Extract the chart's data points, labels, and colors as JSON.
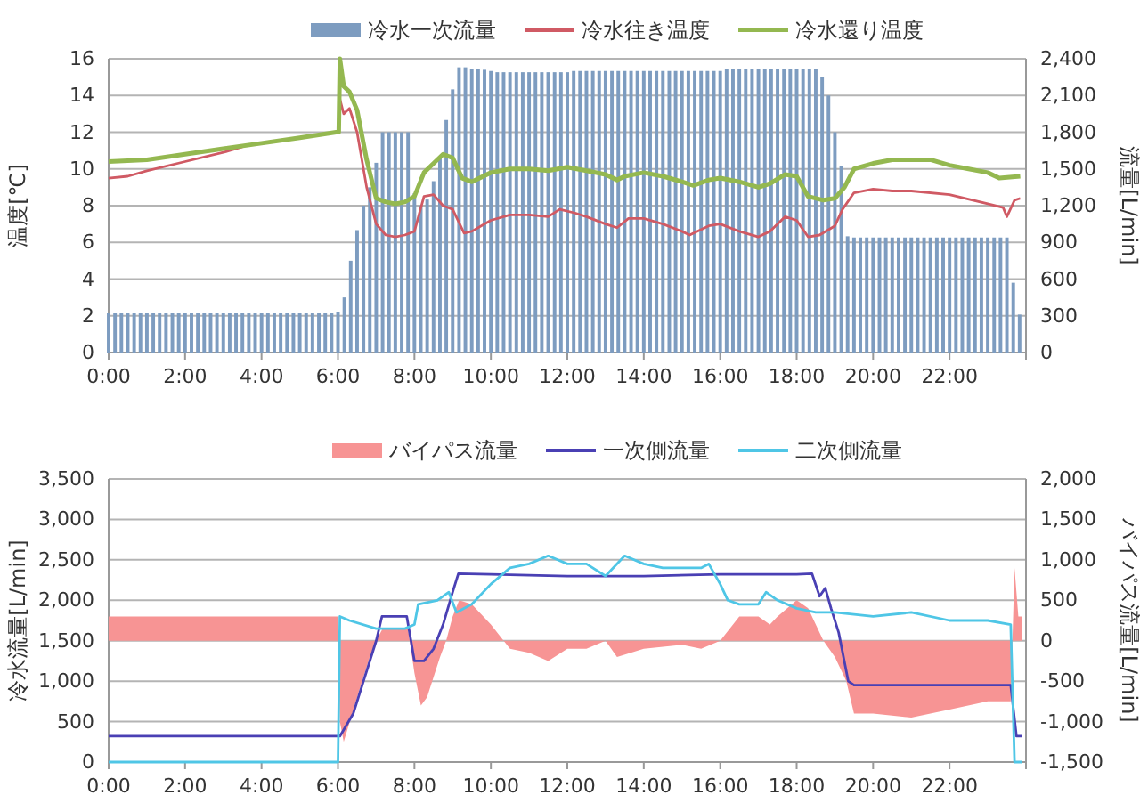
{
  "chart_data": [
    {
      "type": "line",
      "ylabel": "温度[℃]",
      "y2label": "流量[L/min]",
      "legend": "top",
      "grid": "y",
      "xlim": [
        0,
        24
      ],
      "xticks": [
        {
          "value": 0,
          "label": "0:00"
        },
        {
          "value": 2,
          "label": "2:00"
        },
        {
          "value": 4,
          "label": "4:00"
        },
        {
          "value": 6,
          "label": "6:00"
        },
        {
          "value": 8,
          "label": "8:00"
        },
        {
          "value": 10,
          "label": "10:00"
        },
        {
          "value": 12,
          "label": "12:00"
        },
        {
          "value": 14,
          "label": "14:00"
        },
        {
          "value": 16,
          "label": "16:00"
        },
        {
          "value": 18,
          "label": "18:00"
        },
        {
          "value": 20,
          "label": "20:00"
        },
        {
          "value": 22,
          "label": "22:00"
        }
      ],
      "ylim": [
        0,
        16
      ],
      "yticks": [
        0,
        2,
        4,
        6,
        8,
        10,
        12,
        14,
        16
      ],
      "y2lim": [
        0,
        2400
      ],
      "y2ticks": [
        0,
        300,
        600,
        900,
        {
          "value": 1200,
          "label": "1,200"
        },
        {
          "value": 1500,
          "label": "1,500"
        },
        {
          "value": 1800,
          "label": "1,800"
        },
        {
          "value": 2100,
          "label": "2,100"
        },
        {
          "value": 2400,
          "label": "2,400"
        }
      ],
      "series": [
        {
          "name": "冷水一次流量",
          "type": "bar",
          "axis": "y2",
          "color": "#7d9cc0",
          "x": [
            0,
            0.167,
            0.333,
            0.5,
            0.667,
            0.833,
            1,
            1.167,
            1.333,
            1.5,
            1.667,
            1.833,
            2,
            2.167,
            2.333,
            2.5,
            2.667,
            2.833,
            3,
            3.167,
            3.333,
            3.5,
            3.667,
            3.833,
            4,
            4.167,
            4.333,
            4.5,
            4.667,
            4.833,
            5,
            5.167,
            5.333,
            5.5,
            5.667,
            5.833,
            6,
            6.167,
            6.333,
            6.5,
            6.667,
            6.833,
            7,
            7.167,
            7.333,
            7.5,
            7.667,
            7.833,
            8,
            8.167,
            8.333,
            8.5,
            8.667,
            8.833,
            9,
            9.167,
            9.333,
            9.5,
            9.667,
            9.833,
            10,
            10.167,
            10.333,
            10.5,
            10.667,
            10.833,
            11,
            11.167,
            11.333,
            11.5,
            11.667,
            11.833,
            12,
            12.167,
            12.333,
            12.5,
            12.667,
            12.833,
            13,
            13.167,
            13.333,
            13.5,
            13.667,
            13.833,
            14,
            14.167,
            14.333,
            14.5,
            14.667,
            14.833,
            15,
            15.167,
            15.333,
            15.5,
            15.667,
            15.833,
            16,
            16.167,
            16.333,
            16.5,
            16.667,
            16.833,
            17,
            17.167,
            17.333,
            17.5,
            17.667,
            17.833,
            18,
            18.167,
            18.333,
            18.5,
            18.667,
            18.833,
            19,
            19.167,
            19.333,
            19.5,
            19.667,
            19.833,
            20,
            20.167,
            20.333,
            20.5,
            20.667,
            20.833,
            21,
            21.167,
            21.333,
            21.5,
            21.667,
            21.833,
            22,
            22.167,
            22.333,
            22.5,
            22.667,
            22.833,
            23,
            23.167,
            23.333,
            23.5,
            23.667,
            23.833
          ],
          "values": [
            320,
            320,
            320,
            320,
            320,
            320,
            320,
            320,
            320,
            320,
            320,
            320,
            320,
            320,
            320,
            320,
            320,
            320,
            320,
            320,
            320,
            320,
            320,
            320,
            320,
            320,
            320,
            320,
            320,
            320,
            320,
            320,
            320,
            320,
            320,
            320,
            330,
            450,
            750,
            1000,
            1200,
            1350,
            1550,
            1800,
            1800,
            1800,
            1800,
            1800,
            1300,
            1200,
            1250,
            1400,
            1600,
            1900,
            2150,
            2330,
            2330,
            2320,
            2320,
            2310,
            2300,
            2290,
            2290,
            2290,
            2290,
            2290,
            2290,
            2290,
            2290,
            2290,
            2290,
            2290,
            2290,
            2300,
            2300,
            2300,
            2300,
            2300,
            2300,
            2300,
            2300,
            2300,
            2300,
            2300,
            2300,
            2300,
            2300,
            2300,
            2300,
            2300,
            2300,
            2300,
            2300,
            2300,
            2300,
            2300,
            2300,
            2320,
            2320,
            2320,
            2320,
            2320,
            2320,
            2320,
            2320,
            2320,
            2320,
            2320,
            2320,
            2320,
            2320,
            2320,
            2250,
            2100,
            1800,
            1520,
            950,
            940,
            940,
            940,
            940,
            940,
            940,
            940,
            940,
            940,
            940,
            940,
            940,
            940,
            940,
            940,
            940,
            940,
            940,
            940,
            940,
            940,
            940,
            940,
            940,
            940,
            570,
            310
          ]
        },
        {
          "name": "冷水往き温度",
          "color": "#d05a64",
          "x": [
            0,
            0.5,
            1,
            2,
            3,
            3.5,
            4,
            5,
            6,
            6.05,
            6.15,
            6.3,
            6.5,
            6.75,
            7,
            7.25,
            7.5,
            7.75,
            8,
            8.25,
            8.5,
            8.75,
            9,
            9.3,
            9.5,
            10,
            10.5,
            11,
            11.5,
            11.8,
            12.2,
            12.5,
            13,
            13.3,
            13.6,
            14,
            14.5,
            15,
            15.2,
            15.7,
            16,
            16.5,
            17,
            17.3,
            17.7,
            18,
            18.3,
            18.6,
            19,
            19.2,
            19.5,
            20,
            20.5,
            21,
            22,
            23,
            23.4,
            23.5,
            23.7,
            23.85
          ],
          "values": [
            9.5,
            9.6,
            9.9,
            10.4,
            10.9,
            11.2,
            null,
            null,
            null,
            13.8,
            13,
            13.3,
            12,
            9,
            7,
            6.4,
            6.3,
            6.4,
            6.6,
            8.5,
            8.6,
            8,
            7.8,
            6.5,
            6.6,
            7.2,
            7.5,
            7.5,
            7.4,
            7.8,
            7.6,
            7.4,
            7,
            6.8,
            7.3,
            7.3,
            7,
            6.6,
            6.4,
            6.9,
            7,
            6.6,
            6.3,
            6.6,
            7.4,
            7.2,
            6.3,
            6.4,
            6.9,
            7.8,
            8.7,
            8.9,
            8.8,
            8.8,
            8.6,
            8.1,
            7.9,
            7.4,
            8.3,
            8.4
          ]
        },
        {
          "name": "冷水還り温度",
          "color": "#94b850",
          "x": [
            0,
            1,
            2,
            3,
            4,
            5,
            5.95,
            6.02,
            6.05,
            6.15,
            6.3,
            6.5,
            6.75,
            7,
            7.25,
            7.5,
            7.75,
            8,
            8.25,
            8.5,
            8.75,
            9,
            9.25,
            9.5,
            10,
            10.5,
            11,
            11.5,
            12,
            12.5,
            13,
            13.3,
            13.5,
            14,
            14.5,
            15,
            15.3,
            15.7,
            16,
            16.5,
            17,
            17.3,
            17.7,
            18,
            18.3,
            18.7,
            19,
            19.25,
            19.5,
            20,
            20.5,
            21,
            21.5,
            22,
            22.5,
            23,
            23.3,
            23.85
          ],
          "values": [
            10.4,
            10.5,
            10.8,
            11.1,
            11.4,
            11.7,
            12,
            12,
            16,
            14.5,
            14.2,
            13.2,
            10.5,
            8.4,
            8.2,
            8.1,
            8.2,
            8.5,
            9.8,
            10.3,
            10.8,
            10.6,
            9.5,
            9.3,
            9.8,
            10,
            10,
            9.9,
            10.1,
            9.9,
            9.7,
            9.4,
            9.6,
            9.8,
            9.6,
            9.3,
            9.1,
            9.4,
            9.5,
            9.3,
            9,
            9.2,
            9.7,
            9.6,
            8.5,
            8.3,
            8.4,
            9,
            10,
            10.3,
            10.5,
            10.5,
            10.5,
            10.2,
            10,
            9.8,
            9.5,
            9.6
          ]
        }
      ]
    },
    {
      "type": "line",
      "ylabel": "冷水流量[L/min]",
      "y2label": "バイパス流量[L/min]",
      "legend": "top",
      "grid": "y",
      "xlim": [
        0,
        24
      ],
      "xticks": [
        {
          "value": 0,
          "label": "0:00"
        },
        {
          "value": 2,
          "label": "2:00"
        },
        {
          "value": 4,
          "label": "4:00"
        },
        {
          "value": 6,
          "label": "6:00"
        },
        {
          "value": 8,
          "label": "8:00"
        },
        {
          "value": 10,
          "label": "10:00"
        },
        {
          "value": 12,
          "label": "12:00"
        },
        {
          "value": 14,
          "label": "14:00"
        },
        {
          "value": 16,
          "label": "16:00"
        },
        {
          "value": 18,
          "label": "18:00"
        },
        {
          "value": 20,
          "label": "20:00"
        },
        {
          "value": 22,
          "label": "22:00"
        }
      ],
      "ylim": [
        0,
        3500
      ],
      "yticks": [
        0,
        500,
        {
          "value": 1000,
          "label": "1,000"
        },
        {
          "value": 1500,
          "label": "1,500"
        },
        {
          "value": 2000,
          "label": "2,000"
        },
        {
          "value": 2500,
          "label": "2,500"
        },
        {
          "value": 3000,
          "label": "3,000"
        },
        {
          "value": 3500,
          "label": "3,500"
        }
      ],
      "y2lim": [
        -1500,
        2000
      ],
      "y2ticks": [
        {
          "value": -1500,
          "label": "-1,500"
        },
        {
          "value": -1000,
          "label": "-1,000"
        },
        -500,
        0,
        500,
        {
          "value": 1000,
          "label": "1,000"
        },
        {
          "value": 1500,
          "label": "1,500"
        },
        {
          "value": 2000,
          "label": "2,000"
        }
      ],
      "series": [
        {
          "name": "バイパス流量",
          "type": "area",
          "axis": "y2",
          "color": "#f79494",
          "x": [
            0,
            6,
            6.05,
            6.15,
            6.5,
            6.83,
            7,
            7.17,
            7.83,
            8,
            8.17,
            8.33,
            8.67,
            8.83,
            9,
            9.17,
            9.5,
            10,
            10.5,
            11,
            11.5,
            12,
            12.5,
            13,
            13.3,
            14,
            15,
            15.5,
            16,
            16.5,
            17,
            17.3,
            17.5,
            18,
            18.3,
            18.7,
            19,
            19.3,
            19.5,
            20,
            21,
            22,
            23,
            23.6,
            23.7,
            23.8,
            23.9
          ],
          "values": [
            300,
            300,
            -1000,
            -1250,
            -700,
            -200,
            0,
            150,
            150,
            -400,
            -800,
            -700,
            -200,
            0,
            300,
            500,
            450,
            200,
            -100,
            -150,
            -250,
            -100,
            -100,
            0,
            -200,
            -100,
            -50,
            -100,
            0,
            300,
            300,
            200,
            300,
            500,
            400,
            0,
            -200,
            -500,
            -900,
            -900,
            -950,
            -850,
            -750,
            -750,
            900,
            300,
            300
          ]
        },
        {
          "name": "一次側流量",
          "color": "#4a40b4",
          "x": [
            0,
            6.05,
            6.4,
            6.8,
            7,
            7.15,
            7.8,
            8,
            8.25,
            8.5,
            8.75,
            9,
            9.15,
            10,
            12,
            14,
            16,
            18,
            18.4,
            18.6,
            18.75,
            18.9,
            19.1,
            19.35,
            19.5,
            23.6,
            23.75,
            23.9
          ],
          "values": [
            320,
            320,
            600,
            1200,
            1500,
            1800,
            1800,
            1250,
            1250,
            1400,
            1700,
            2100,
            2330,
            2320,
            2300,
            2300,
            2320,
            2320,
            2330,
            2050,
            2150,
            1900,
            1600,
            1000,
            950,
            950,
            320,
            320
          ]
        },
        {
          "name": "二次側流量",
          "color": "#4fc6e6",
          "x": [
            0,
            6,
            6.05,
            6.3,
            7,
            7.75,
            8,
            8.1,
            8.6,
            8.9,
            9.1,
            9.5,
            10,
            10.5,
            11,
            11.5,
            12,
            12.5,
            13,
            13.5,
            14,
            14.5,
            15,
            15.5,
            15.7,
            16,
            16.2,
            16.5,
            17,
            17.2,
            17.5,
            18,
            18.5,
            19,
            20,
            21,
            22,
            23,
            23.6,
            23.7,
            23.9
          ],
          "values": [
            0,
            0,
            1800,
            1750,
            1650,
            1650,
            1700,
            1950,
            2000,
            2100,
            1850,
            1950,
            2200,
            2400,
            2450,
            2550,
            2450,
            2450,
            2300,
            2550,
            2450,
            2400,
            2400,
            2400,
            2450,
            2200,
            2000,
            1950,
            1950,
            2100,
            2000,
            1900,
            1850,
            1850,
            1800,
            1850,
            1750,
            1750,
            1700,
            0,
            0
          ]
        }
      ]
    }
  ]
}
